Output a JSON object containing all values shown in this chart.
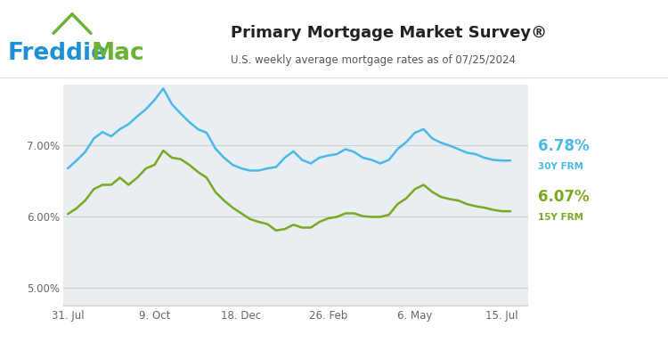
{
  "title": "Primary Mortgage Market Survey®",
  "subtitle": "U.S. weekly average mortgage rates as of 07/25/2024",
  "header_bg": "#ffffff",
  "plot_bg_color": "#e8eef2",
  "outer_bg": "#f2f4f6",
  "line_30y_color": "#4ab8e8",
  "line_15y_color": "#7aa820",
  "label_30y": "6.78%",
  "label_15y": "6.07%",
  "label_30y_sub": "30Y FRM",
  "label_15y_sub": "15Y FRM",
  "yticks": [
    5.0,
    6.0,
    7.0
  ],
  "ytick_labels": [
    "5.00%",
    "6.00%",
    "7.00%"
  ],
  "ylim": [
    4.75,
    7.85
  ],
  "xtick_labels": [
    "31. Jul",
    "9. Oct",
    "18. Dec",
    "26. Feb",
    "6. May",
    "15. Jul"
  ],
  "freddie_blue": "#1e90d4",
  "freddie_green": "#6cb234",
  "title_color": "#222222",
  "subtitle_color": "#555555",
  "tick_color": "#666666",
  "grid_color": "#c8d0d8",
  "spine_color": "#c8d0d8",
  "vals_30y": [
    6.67,
    6.78,
    6.9,
    7.09,
    7.18,
    7.12,
    7.22,
    7.29,
    7.4,
    7.5,
    7.63,
    7.79,
    7.57,
    7.44,
    7.32,
    7.22,
    7.17,
    6.95,
    6.82,
    6.72,
    6.67,
    6.64,
    6.64,
    6.67,
    6.69,
    6.82,
    6.91,
    6.79,
    6.74,
    6.82,
    6.85,
    6.87,
    6.94,
    6.9,
    6.82,
    6.79,
    6.74,
    6.79,
    6.94,
    7.04,
    7.17,
    7.22,
    7.09,
    7.03,
    6.99,
    6.94,
    6.89,
    6.87,
    6.82,
    6.79,
    6.78,
    6.78
  ],
  "vals_15y": [
    6.03,
    6.11,
    6.22,
    6.38,
    6.44,
    6.44,
    6.54,
    6.44,
    6.54,
    6.67,
    6.72,
    6.92,
    6.82,
    6.8,
    6.72,
    6.62,
    6.54,
    6.34,
    6.22,
    6.12,
    6.04,
    5.96,
    5.92,
    5.89,
    5.8,
    5.82,
    5.88,
    5.84,
    5.84,
    5.92,
    5.97,
    5.99,
    6.04,
    6.04,
    6.0,
    5.99,
    5.99,
    6.02,
    6.17,
    6.25,
    6.38,
    6.44,
    6.34,
    6.27,
    6.24,
    6.22,
    6.17,
    6.14,
    6.12,
    6.09,
    6.07,
    6.07
  ]
}
